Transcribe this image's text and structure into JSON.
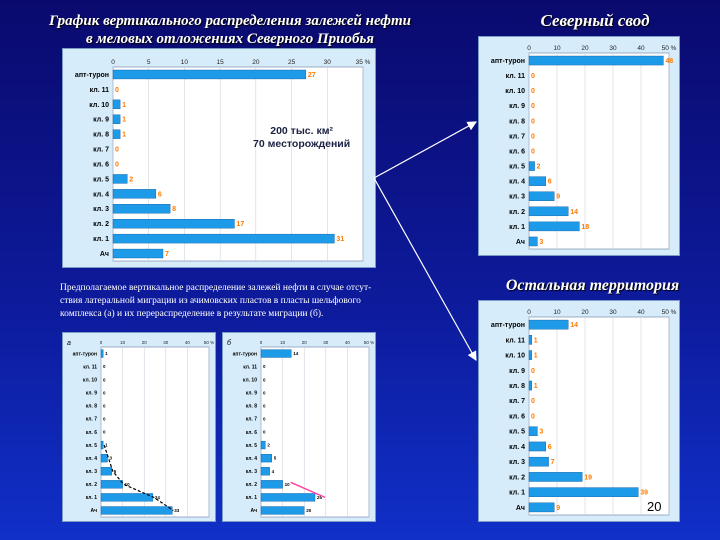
{
  "slide": {
    "main_title_line1": "График вертикального распределения залежей нефти",
    "main_title_line2": "в меловых отложениях Северного Приобья",
    "north_title": "Северный свод",
    "rest_title": "Остальная территория",
    "caption_line1": "Предполагаемое вертикальное распределение залежей нефти в случае отсут-",
    "caption_line2": "ствия латеральной миграции из ачимовских пластов в пласты шельфового",
    "caption_line3": "комплекса (а) и их перераспределение в результате миграции (б).",
    "page_number": "20",
    "annotation_line1": "200 тыс. км²",
    "annotation_line2": "70 месторождений"
  },
  "chart_data": [
    {
      "id": "main",
      "type": "bar",
      "orientation": "horizontal",
      "categories": [
        "апт-турон",
        "кл. 11",
        "кл. 10",
        "кл. 9",
        "кл. 8",
        "кл. 7",
        "кл. 6",
        "кл. 5",
        "кл. 4",
        "кл. 3",
        "кл. 2",
        "кл. 1",
        "Ач"
      ],
      "values": [
        27,
        0,
        1,
        1,
        1,
        0,
        0,
        2,
        6,
        8,
        17,
        31,
        7
      ],
      "xticks": [
        "0",
        "5",
        "10",
        "15",
        "20",
        "25",
        "30",
        "35 %"
      ],
      "xlim": [
        0,
        35
      ],
      "bar_color": "#1e9be8",
      "label_color": "#ff7a00"
    },
    {
      "id": "north",
      "type": "bar",
      "orientation": "horizontal",
      "categories": [
        "апт-турон",
        "кл. 11",
        "кл. 10",
        "кл. 9",
        "кл. 8",
        "кл. 7",
        "кл. 6",
        "кл. 5",
        "кл. 4",
        "кл. 3",
        "кл. 2",
        "кл. 1",
        "Ач"
      ],
      "values": [
        48,
        0,
        0,
        0,
        0,
        0,
        0,
        2,
        6,
        9,
        14,
        18,
        3
      ],
      "xticks": [
        "0",
        "10",
        "20",
        "30",
        "40",
        "50 %"
      ],
      "xlim": [
        0,
        50
      ],
      "bar_color": "#1e9be8",
      "label_color": "#ff7a00"
    },
    {
      "id": "rest",
      "type": "bar",
      "orientation": "horizontal",
      "categories": [
        "апт-турон",
        "кл. 11",
        "кл. 10",
        "кл. 9",
        "кл. 8",
        "кл. 7",
        "кл. 6",
        "кл. 5",
        "кл. 4",
        "кл. 3",
        "кл. 2",
        "кл. 1",
        "Ач"
      ],
      "values": [
        14,
        1,
        1,
        0,
        1,
        0,
        0,
        3,
        6,
        7,
        19,
        39,
        9
      ],
      "xticks": [
        "0",
        "10",
        "20",
        "30",
        "40",
        "50 %"
      ],
      "xlim": [
        0,
        50
      ],
      "bar_color": "#1e9be8",
      "label_color": "#ff7a00"
    },
    {
      "id": "small-a",
      "panel_letter": "а",
      "type": "bar",
      "orientation": "horizontal",
      "categories": [
        "апт-турон",
        "кл. 11",
        "кл. 10",
        "кл. 9",
        "кл. 8",
        "кл. 7",
        "кл. 6",
        "кл. 5",
        "кл. 4",
        "кл. 3",
        "кл. 2",
        "кл. 1",
        "Ач"
      ],
      "values": [
        1,
        0,
        0,
        0,
        0,
        0,
        0,
        1,
        3,
        5,
        10,
        24,
        33
      ],
      "xticks": [
        "0",
        "10",
        "20",
        "30",
        "40",
        "50 %"
      ],
      "xlim": [
        0,
        50
      ],
      "bar_color": "#1e9be8",
      "label_color": "#000000"
    },
    {
      "id": "small-b",
      "panel_letter": "б",
      "type": "bar",
      "orientation": "horizontal",
      "categories": [
        "апт-турон",
        "кл. 11",
        "кл. 10",
        "кл. 9",
        "кл. 8",
        "кл. 7",
        "кл. 6",
        "кл. 5",
        "кл. 4",
        "кл. 3",
        "кл. 2",
        "кл. 1",
        "Ач"
      ],
      "values": [
        14,
        0,
        0,
        0,
        0,
        0,
        0,
        2,
        5,
        4,
        10,
        25,
        20
      ],
      "xticks": [
        "0",
        "10",
        "20",
        "30",
        "40",
        "50 %"
      ],
      "xlim": [
        0,
        50
      ],
      "bar_color": "#1e9be8",
      "label_color": "#000000"
    }
  ]
}
